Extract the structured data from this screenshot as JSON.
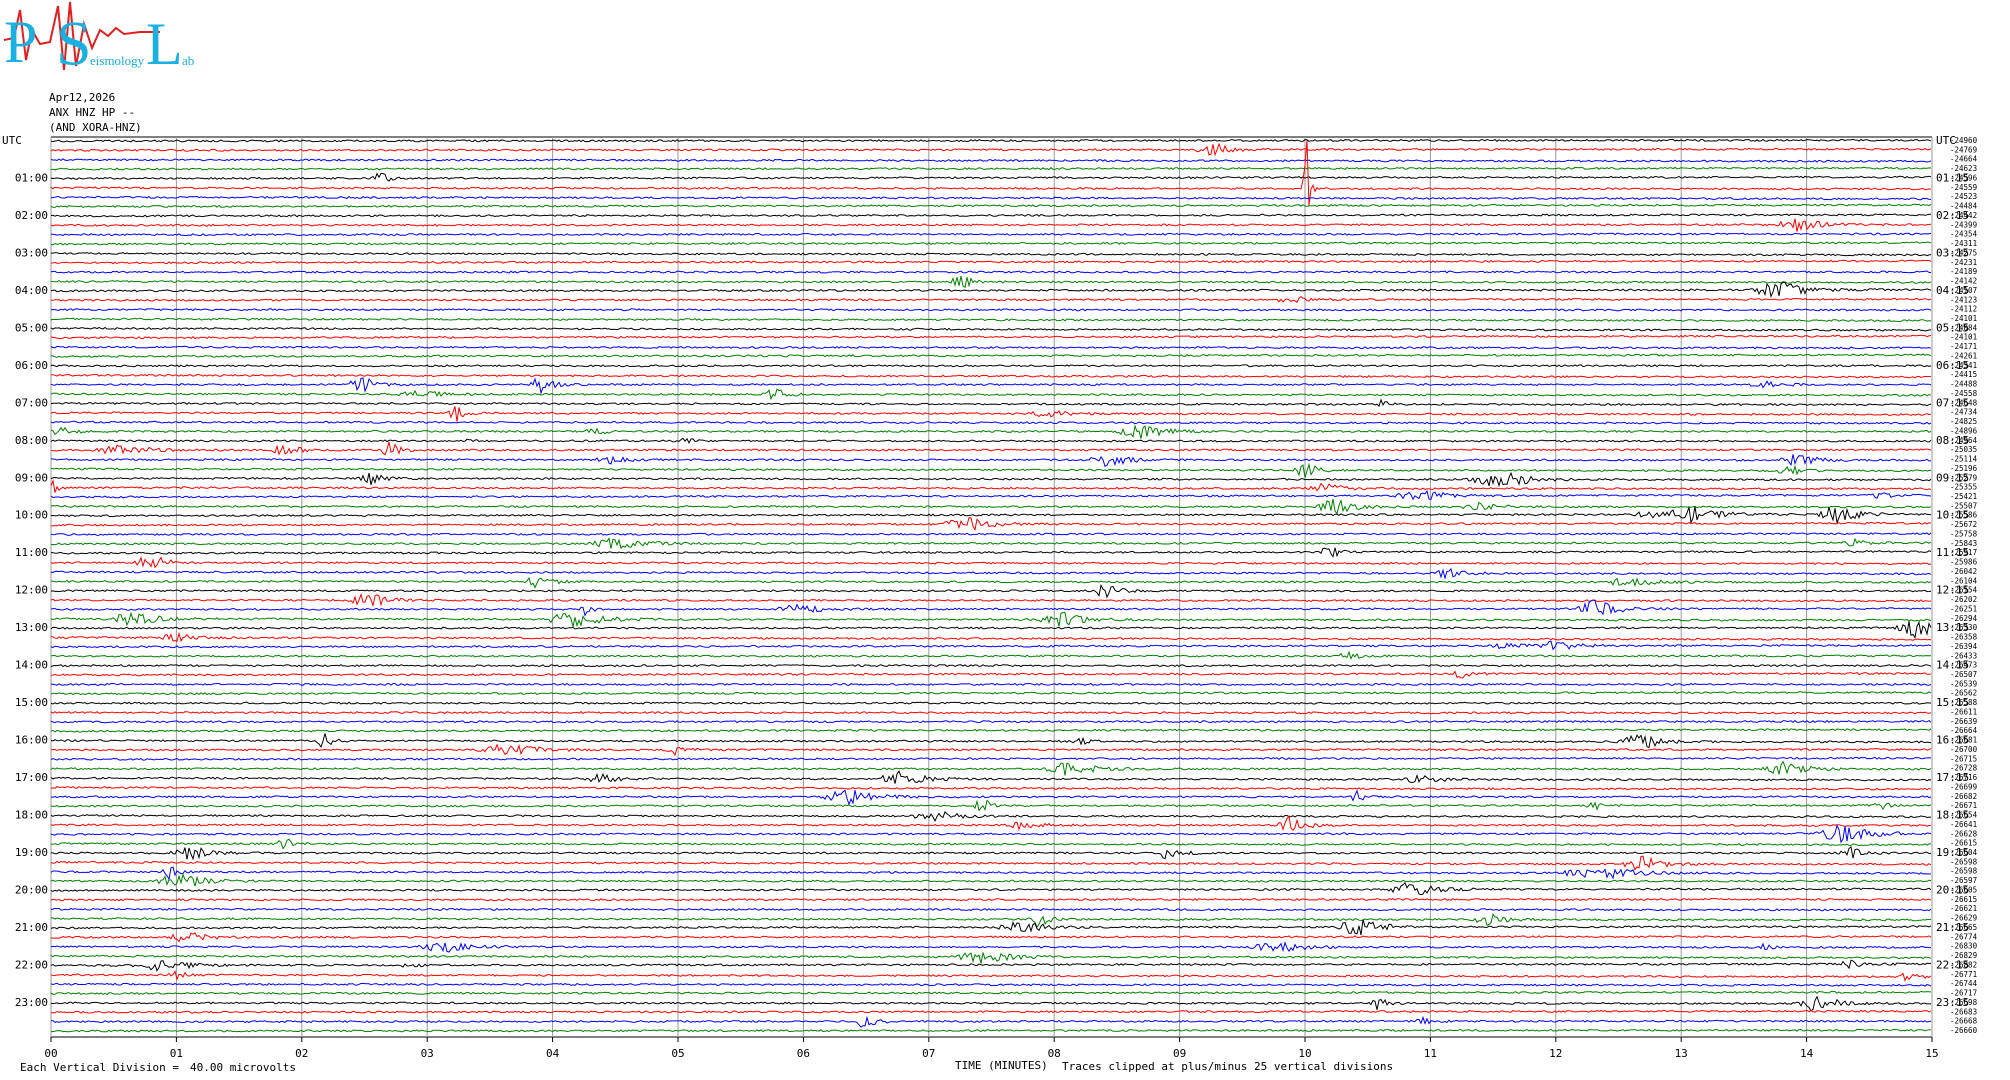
{
  "logo": {
    "letters": [
      "P",
      "S",
      "L"
    ],
    "small": [
      "eismology",
      "ab"
    ]
  },
  "chart_data": {
    "type": "helicorder",
    "title": [
      "Apr12,2026",
      "ANX HNZ HP --",
      "(AND XORA-HNZ)"
    ],
    "left_labels": [
      "UTC",
      "01:00",
      "02:00",
      "03:00",
      "04:00",
      "05:00",
      "06:00",
      "07:00",
      "08:00",
      "09:00",
      "10:00",
      "11:00",
      "12:00",
      "13:00",
      "14:00",
      "15:00",
      "16:00",
      "17:00",
      "18:00",
      "19:00",
      "20:00",
      "21:00",
      "22:00",
      "23:00"
    ],
    "right_labels": [
      "UTC",
      "01:15",
      "02:15",
      "03:15",
      "04:15",
      "05:15",
      "06:15",
      "07:15",
      "08:15",
      "09:15",
      "10:15",
      "11:15",
      "12:15",
      "13:15",
      "14:15",
      "15:15",
      "16:15",
      "17:15",
      "18:15",
      "19:15",
      "20:15",
      "21:15",
      "22:15",
      "23:15"
    ],
    "offsets": [
      -24960,
      -24769,
      -24664,
      -24623,
      -24596,
      -24559,
      -24523,
      -24484,
      -24442,
      -24399,
      -24354,
      -24311,
      -24275,
      -24231,
      -24189,
      -24142,
      -24107,
      -24123,
      -24112,
      -24101,
      -24084,
      -24101,
      -24171,
      -24261,
      -24341,
      -24415,
      -24488,
      -24558,
      -24648,
      -24734,
      -24825,
      -24896,
      -24964,
      -25035,
      -25114,
      -25196,
      -25279,
      -25355,
      -25421,
      -25507,
      -25586,
      -25672,
      -25758,
      -25843,
      -25917,
      -25986,
      -26042,
      -26104,
      -26154,
      -26202,
      -26251,
      -26294,
      -26330,
      -26358,
      -26394,
      -26433,
      -26473,
      -26507,
      -26539,
      -26562,
      -26588,
      -26611,
      -26639,
      -26664,
      -26681,
      -26700,
      -26715,
      -26728,
      -26716,
      -26699,
      -26682,
      -26671,
      -26654,
      -26641,
      -26628,
      -26615,
      -26604,
      -26598,
      -26598,
      -26597,
      -26605,
      -26615,
      -26621,
      -26629,
      -26665,
      -26774,
      -26830,
      -26829,
      -26882,
      -26771,
      -26744,
      -26717,
      -26698,
      -26683,
      -26668,
      -26660
    ],
    "colors": [
      "#000000",
      "#ff0000",
      "#0000ff",
      "#008000"
    ],
    "xlim": [
      0,
      15
    ],
    "xticks": [
      {
        "value": 0,
        "label": "00"
      },
      {
        "value": 1,
        "label": "01"
      },
      {
        "value": 2,
        "label": "02"
      },
      {
        "value": 3,
        "label": "03"
      },
      {
        "value": 4,
        "label": "04"
      },
      {
        "value": 5,
        "label": "05"
      },
      {
        "value": 6,
        "label": "06"
      },
      {
        "value": 7,
        "label": "07"
      },
      {
        "value": 8,
        "label": "08"
      },
      {
        "value": 9,
        "label": "09"
      },
      10,
      11,
      12,
      13,
      14,
      15
    ],
    "xlabel": "TIME (MINUTES)",
    "scale_note": "Each Vertical Division =",
    "scale_value": "40.00 microvolts",
    "clip_note": "Traces clipped at plus/minus 25 vertical divisions",
    "grid": true
  }
}
